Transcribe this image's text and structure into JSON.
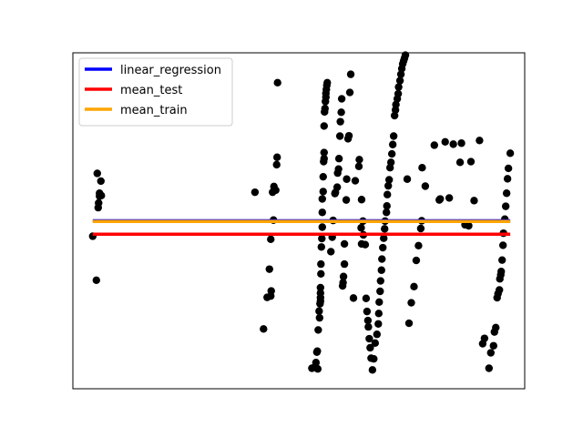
{
  "chart_data": {
    "type": "scatter",
    "title": "",
    "xlabel": "",
    "ylabel": "",
    "xlim": [
      0,
      100
    ],
    "ylim": [
      0,
      100
    ],
    "grid": false,
    "legend_position": "top-left",
    "scatter_color": "#000000",
    "points": [
      [
        4.4,
        45.4
      ],
      [
        5.2,
        32.3
      ],
      [
        5.4,
        64.1
      ],
      [
        5.6,
        53.9
      ],
      [
        5.7,
        55.3
      ],
      [
        5.9,
        57.3
      ],
      [
        5.9,
        58.2
      ],
      [
        6.2,
        61.8
      ],
      [
        6.3,
        57.5
      ],
      [
        40.3,
        58.5
      ],
      [
        42.2,
        17.8
      ],
      [
        43.0,
        27.2
      ],
      [
        43.5,
        35.6
      ],
      [
        43.8,
        44.5
      ],
      [
        43.8,
        27.6
      ],
      [
        43.9,
        29.1
      ],
      [
        44.2,
        58.5
      ],
      [
        44.4,
        50.2
      ],
      [
        44.5,
        60.2
      ],
      [
        44.9,
        59.1
      ],
      [
        45.1,
        66.7
      ],
      [
        45.2,
        68.9
      ],
      [
        45.3,
        91.1
      ],
      [
        52.9,
        6.1
      ],
      [
        53.5,
        6.4
      ],
      [
        53.8,
        7.8
      ],
      [
        54.0,
        10.9
      ],
      [
        54.1,
        11.2
      ],
      [
        54.2,
        5.9
      ],
      [
        54.3,
        17.5
      ],
      [
        54.5,
        23.1
      ],
      [
        54.6,
        21.1
      ],
      [
        54.7,
        25.3
      ],
      [
        54.8,
        26.1
      ],
      [
        54.8,
        27.1
      ],
      [
        54.8,
        28.5
      ],
      [
        54.8,
        30.1
      ],
      [
        54.9,
        34.2
      ],
      [
        54.9,
        37.1
      ],
      [
        55.0,
        42.2
      ],
      [
        55.1,
        44.7
      ],
      [
        55.2,
        48.1
      ],
      [
        55.2,
        52.5
      ],
      [
        55.2,
        56.5
      ],
      [
        55.4,
        58.7
      ],
      [
        55.4,
        63.1
      ],
      [
        55.5,
        67.6
      ],
      [
        55.6,
        68.5
      ],
      [
        55.6,
        70.3
      ],
      [
        55.6,
        78.2
      ],
      [
        55.7,
        82.4
      ],
      [
        55.8,
        83.4
      ],
      [
        55.9,
        85.5
      ],
      [
        56.0,
        86.8
      ],
      [
        56.0,
        87.9
      ],
      [
        56.1,
        89.1
      ],
      [
        56.2,
        90.3
      ],
      [
        56.3,
        91.1
      ],
      [
        57.1,
        40.8
      ],
      [
        57.4,
        45.1
      ],
      [
        57.6,
        50.1
      ],
      [
        58.0,
        58.1
      ],
      [
        58.1,
        58.4
      ],
      [
        58.5,
        60.0
      ],
      [
        58.6,
        64.2
      ],
      [
        58.8,
        65.4
      ],
      [
        58.9,
        68.5
      ],
      [
        59.1,
        75.2
      ],
      [
        59.2,
        79.5
      ],
      [
        59.4,
        82.3
      ],
      [
        59.5,
        86.3
      ],
      [
        59.7,
        30.6
      ],
      [
        59.8,
        31.6
      ],
      [
        59.9,
        33.4
      ],
      [
        60.1,
        37.1
      ],
      [
        60.1,
        43.1
      ],
      [
        60.5,
        56.2
      ],
      [
        60.6,
        62.4
      ],
      [
        60.9,
        74.4
      ],
      [
        61.1,
        75.3
      ],
      [
        61.3,
        88.2
      ],
      [
        61.5,
        93.6
      ],
      [
        62.1,
        27.0
      ],
      [
        62.5,
        61.9
      ],
      [
        63.3,
        66.2
      ],
      [
        63.4,
        68.2
      ],
      [
        63.9,
        56.3
      ],
      [
        64.2,
        49.9
      ],
      [
        63.8,
        47.9
      ],
      [
        63.9,
        43.1
      ],
      [
        64.3,
        45.8
      ],
      [
        64.7,
        42.9
      ],
      [
        64.9,
        26.9
      ],
      [
        65.1,
        23.0
      ],
      [
        65.3,
        20.3
      ],
      [
        65.4,
        18.4
      ],
      [
        65.6,
        14.9
      ],
      [
        65.8,
        12.2
      ],
      [
        66.0,
        9.1
      ],
      [
        66.3,
        5.6
      ],
      [
        66.6,
        8.9
      ],
      [
        66.9,
        13.6
      ],
      [
        67.3,
        16.2
      ],
      [
        67.6,
        19.3
      ],
      [
        67.7,
        22.4
      ],
      [
        67.8,
        25.8
      ],
      [
        68.0,
        29.0
      ],
      [
        68.1,
        32.1
      ],
      [
        68.3,
        35.3
      ],
      [
        68.4,
        38.6
      ],
      [
        68.6,
        42.0
      ],
      [
        68.8,
        44.8
      ],
      [
        69.0,
        47.6
      ],
      [
        69.1,
        49.9
      ],
      [
        69.4,
        52.5
      ],
      [
        69.5,
        54.4
      ],
      [
        69.6,
        57.8
      ],
      [
        69.8,
        60.4
      ],
      [
        70.0,
        62.2
      ],
      [
        70.2,
        65.8
      ],
      [
        70.4,
        67.4
      ],
      [
        70.6,
        69.9
      ],
      [
        70.8,
        72.7
      ],
      [
        71.0,
        75.2
      ],
      [
        71.2,
        81.3
      ],
      [
        71.4,
        83.0
      ],
      [
        71.5,
        84.6
      ],
      [
        71.8,
        86.3
      ],
      [
        72.0,
        87.8
      ],
      [
        72.1,
        89.8
      ],
      [
        72.4,
        91.7
      ],
      [
        72.6,
        93.6
      ],
      [
        72.8,
        95.3
      ],
      [
        73.0,
        96.7
      ],
      [
        73.2,
        97.6
      ],
      [
        73.4,
        98.4
      ],
      [
        73.6,
        99.3
      ],
      [
        74.0,
        62.4
      ],
      [
        74.4,
        19.5
      ],
      [
        74.9,
        25.6
      ],
      [
        75.5,
        30.4
      ],
      [
        76.0,
        38.2
      ],
      [
        76.5,
        42.6
      ],
      [
        77.0,
        47.7
      ],
      [
        77.2,
        50.0
      ],
      [
        77.3,
        65.8
      ],
      [
        78.0,
        60.3
      ],
      [
        80.0,
        72.5
      ],
      [
        81.1,
        56.2
      ],
      [
        81.3,
        56.5
      ],
      [
        83.3,
        56.8
      ],
      [
        85.7,
        67.4
      ],
      [
        86.8,
        48.8
      ],
      [
        87.6,
        48.5
      ],
      [
        88.1,
        67.6
      ],
      [
        90.7,
        13.4
      ],
      [
        91.1,
        15.0
      ],
      [
        92.1,
        6.1
      ],
      [
        92.5,
        10.7
      ],
      [
        93.1,
        12.8
      ],
      [
        93.3,
        16.9
      ],
      [
        93.6,
        18.2
      ],
      [
        93.9,
        27.1
      ],
      [
        94.1,
        28.3
      ],
      [
        94.4,
        29.4
      ],
      [
        94.5,
        32.7
      ],
      [
        94.7,
        33.9
      ],
      [
        94.8,
        34.9
      ],
      [
        95.0,
        38.3
      ],
      [
        95.2,
        42.7
      ],
      [
        95.3,
        46.3
      ],
      [
        95.6,
        50.5
      ],
      [
        95.8,
        54.3
      ],
      [
        96.0,
        58.2
      ],
      [
        96.2,
        62.5
      ],
      [
        96.4,
        65.6
      ],
      [
        96.8,
        70.1
      ],
      [
        82.4,
        73.5
      ],
      [
        84.2,
        72.8
      ],
      [
        86.0,
        73.1
      ],
      [
        88.8,
        56.0
      ],
      [
        90.0,
        73.9
      ]
    ],
    "series": [
      {
        "name": "linear_regression",
        "color": "#0000ff",
        "x": [
          4.4,
          96.8
        ],
        "y": [
          50.0,
          50.0
        ]
      },
      {
        "name": "mean_test",
        "color": "#ff0000",
        "x": [
          4.4,
          96.8
        ],
        "y": [
          46.0,
          46.0
        ]
      },
      {
        "name": "mean_train",
        "color": "#ffa500",
        "x": [
          4.4,
          96.8
        ],
        "y": [
          49.8,
          49.8
        ]
      }
    ]
  }
}
